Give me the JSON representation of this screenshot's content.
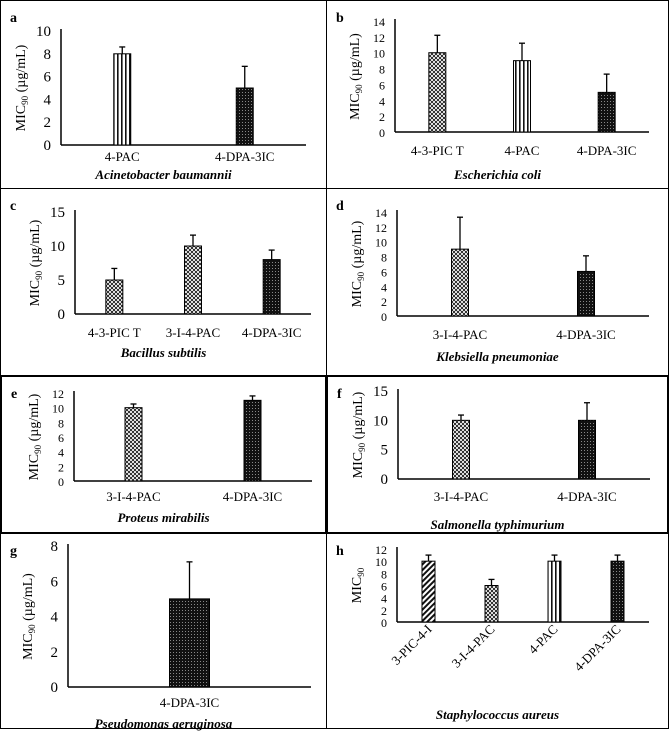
{
  "chart_data": [
    {
      "panel": "a",
      "type": "bar",
      "title": "Acinetobacter baumannii",
      "ylabel": "MIC90 (µg/mL)",
      "ylim": [
        0,
        10
      ],
      "yticks": [
        0,
        2,
        4,
        6,
        8,
        10
      ],
      "categories": [
        "4-PAC",
        "4-DPA-3IC"
      ],
      "values": [
        8,
        5
      ],
      "errors": [
        0.6,
        1.9
      ],
      "patterns": [
        "vstripe",
        "dark"
      ]
    },
    {
      "panel": "b",
      "type": "bar",
      "title": "Escherichia coli",
      "ylabel": "MIC90 (µg/mL)",
      "ylim": [
        0,
        14
      ],
      "yticks": [
        0,
        2,
        4,
        6,
        8,
        10,
        12,
        14
      ],
      "categories": [
        "4-3-PIC T",
        "4-PAC",
        "4-DPA-3IC"
      ],
      "values": [
        10,
        9,
        5
      ],
      "errors": [
        2.2,
        2.2,
        2.3
      ],
      "patterns": [
        "check",
        "vstripe",
        "dark"
      ]
    },
    {
      "panel": "c",
      "type": "bar",
      "title": "Bacillus  subtilis",
      "ylabel": "MIC90 (µg/mL)",
      "ylim": [
        0,
        15
      ],
      "yticks": [
        0,
        5,
        10,
        15
      ],
      "categories": [
        "4-3-PIC T",
        "3-I-4-PAC",
        "4-DPA-3IC"
      ],
      "values": [
        5,
        10,
        8
      ],
      "errors": [
        1.7,
        1.6,
        1.4
      ],
      "patterns": [
        "check",
        "check",
        "dark"
      ]
    },
    {
      "panel": "d",
      "type": "bar",
      "title": "Klebsiella pneumoniae",
      "ylabel": "MIC90 (µg/mL)",
      "ylim": [
        0,
        14
      ],
      "yticks": [
        0,
        2,
        4,
        6,
        8,
        10,
        12,
        14
      ],
      "categories": [
        "3-I-4-PAC",
        "4-DPA-3IC"
      ],
      "values": [
        9,
        6
      ],
      "errors": [
        4.3,
        2.1
      ],
      "patterns": [
        "check",
        "dark"
      ]
    },
    {
      "panel": "e",
      "type": "bar",
      "title": "Proteus mirabilis",
      "ylabel": "MIC90 (µg/mL)",
      "ylim": [
        0,
        12
      ],
      "yticks": [
        0,
        2,
        4,
        6,
        8,
        10,
        12
      ],
      "categories": [
        "3-I-4-PAC",
        "4-DPA-3IC"
      ],
      "values": [
        10,
        11
      ],
      "errors": [
        0.5,
        0.6
      ],
      "patterns": [
        "check",
        "dark"
      ]
    },
    {
      "panel": "f",
      "type": "bar",
      "title": "Salmonella typhimurium",
      "ylabel": "MIC90 (µg/mL)",
      "ylim": [
        0,
        15
      ],
      "yticks": [
        0,
        5,
        10,
        15
      ],
      "categories": [
        "3-I-4-PAC",
        "4-DPA-3IC"
      ],
      "values": [
        10,
        10
      ],
      "errors": [
        0.9,
        3
      ],
      "patterns": [
        "check",
        "dark"
      ]
    },
    {
      "panel": "g",
      "type": "bar",
      "title": "Pseudomonas aeruginosa",
      "ylabel": "MIC90 (µg/mL)",
      "ylim": [
        0,
        8
      ],
      "yticks": [
        0,
        2,
        4,
        6,
        8
      ],
      "categories": [
        "4-DPA-3IC"
      ],
      "values": [
        5
      ],
      "errors": [
        2.1
      ],
      "patterns": [
        "dark"
      ]
    },
    {
      "panel": "h",
      "type": "bar",
      "title": "Staphylococcus aureus",
      "ylabel": "MIC90",
      "ylim": [
        0,
        12
      ],
      "yticks": [
        0,
        2,
        4,
        6,
        8,
        10,
        12
      ],
      "categories": [
        "3-PIC-4-I",
        "3-I-4-PAC",
        "4-PAC",
        "4-DPA-3IC"
      ],
      "values": [
        10,
        6,
        10,
        10
      ],
      "errors": [
        1,
        1,
        1,
        1
      ],
      "patterns": [
        "diag",
        "check",
        "vstripe",
        "dark"
      ]
    }
  ]
}
